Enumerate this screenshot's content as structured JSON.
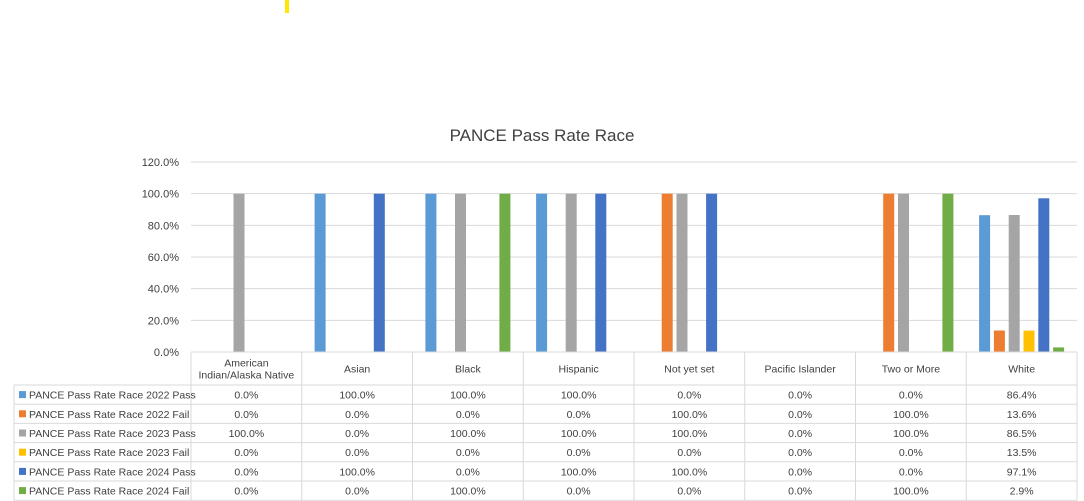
{
  "chart_data": {
    "type": "bar",
    "title": "PANCE Pass Rate Race",
    "ylim": [
      0,
      120
    ],
    "y_ticks": [
      "0.0%",
      "20.0%",
      "40.0%",
      "60.0%",
      "80.0%",
      "100.0%",
      "120.0%"
    ],
    "grid": true,
    "legend_placement": "data-table-left",
    "categories": [
      [
        "American",
        "Indian/Alaska Native"
      ],
      [
        "Asian"
      ],
      [
        "Black"
      ],
      [
        "Hispanic"
      ],
      [
        "Not yet set"
      ],
      [
        "Pacific Islander"
      ],
      [
        "Two or More"
      ],
      [
        "White"
      ]
    ],
    "series": [
      {
        "name": "PANCE Pass Rate Race 2022 Pass",
        "color": "#5B9BD5",
        "values": [
          0,
          100,
          100,
          100,
          0,
          0,
          0,
          86.4
        ],
        "labels": [
          "0.0%",
          "100.0%",
          "100.0%",
          "100.0%",
          "0.0%",
          "0.0%",
          "0.0%",
          "86.4%"
        ]
      },
      {
        "name": "PANCE Pass Rate Race 2022 Fail",
        "color": "#ED7D31",
        "values": [
          0,
          0,
          0,
          0,
          100,
          0,
          100,
          13.6
        ],
        "labels": [
          "0.0%",
          "0.0%",
          "0.0%",
          "0.0%",
          "100.0%",
          "0.0%",
          "100.0%",
          "13.6%"
        ]
      },
      {
        "name": "PANCE Pass Rate Race 2023 Pass",
        "color": "#A5A5A5",
        "values": [
          100,
          0,
          100,
          100,
          100,
          0,
          100,
          86.5
        ],
        "labels": [
          "100.0%",
          "0.0%",
          "100.0%",
          "100.0%",
          "100.0%",
          "0.0%",
          "100.0%",
          "86.5%"
        ]
      },
      {
        "name": "PANCE Pass Rate Race 2023 Fail",
        "color": "#FFC000",
        "values": [
          0,
          0,
          0,
          0,
          0,
          0,
          0,
          13.5
        ],
        "labels": [
          "0.0%",
          "0.0%",
          "0.0%",
          "0.0%",
          "0.0%",
          "0.0%",
          "0.0%",
          "13.5%"
        ]
      },
      {
        "name": "PANCE Pass Rate Race 2024 Pass",
        "color": "#4472C4",
        "values": [
          0,
          100,
          0,
          100,
          100,
          0,
          0,
          97.1
        ],
        "labels": [
          "0.0%",
          "100.0%",
          "0.0%",
          "100.0%",
          "100.0%",
          "0.0%",
          "0.0%",
          "97.1%"
        ]
      },
      {
        "name": "PANCE Pass Rate Race 2024 Fail",
        "color": "#70AD47",
        "values": [
          0,
          0,
          100,
          0,
          0,
          0,
          100,
          2.9
        ],
        "labels": [
          "0.0%",
          "0.0%",
          "100.0%",
          "0.0%",
          "0.0%",
          "0.0%",
          "100.0%",
          "2.9%"
        ]
      }
    ]
  },
  "colors": {
    "gridline": "#D9D9D9",
    "table_border": "#D9D9D9",
    "text": "#404040",
    "stray_mark": "#FFE600"
  }
}
